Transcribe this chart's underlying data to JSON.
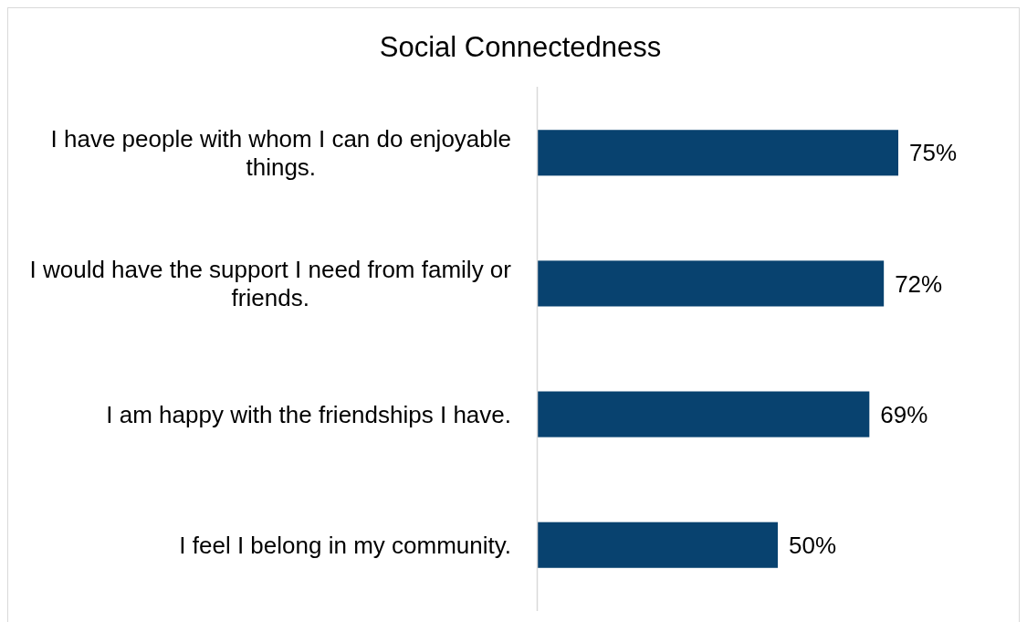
{
  "chart_data": {
    "type": "bar",
    "orientation": "horizontal",
    "title": "Social Connectedness",
    "categories": [
      "I have people with whom I can do enjoyable things.",
      "I would have the support I need from family or friends.",
      "I am happy with the friendships I have.",
      "I feel I belong in my community."
    ],
    "values": [
      75,
      72,
      69,
      50
    ],
    "value_labels": [
      "75%",
      "72%",
      "69%",
      "50%"
    ],
    "color": "#08426f"
  }
}
